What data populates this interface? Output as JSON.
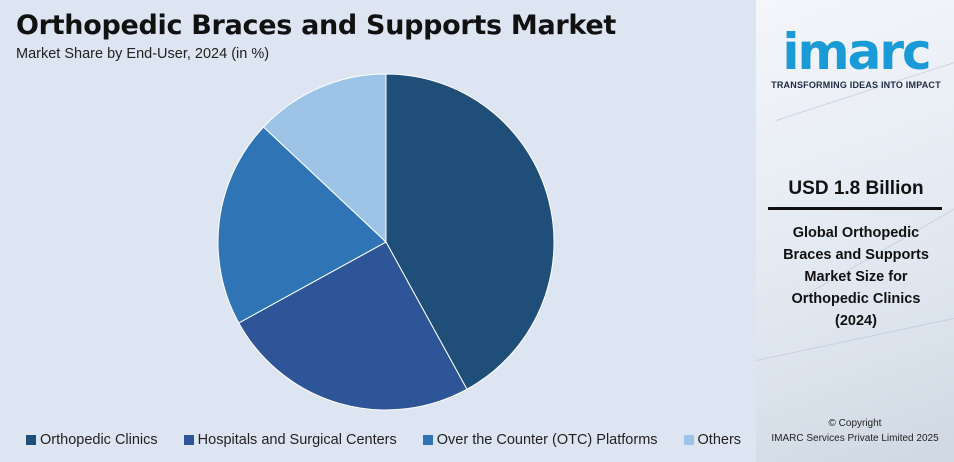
{
  "header": {
    "title": "Orthopedic Braces and Supports Market",
    "subtitle": "Market Share by End-User, 2024 (in %)"
  },
  "chart_data": {
    "type": "pie",
    "title": "Orthopedic Braces and Supports Market",
    "subtitle": "Market Share by End-User, 2024 (in %)",
    "categories": [
      "Orthopedic Clinics",
      "Hospitals and Surgical Centers",
      "Over the Counter (OTC) Platforms",
      "Others"
    ],
    "values": [
      42,
      25,
      20,
      13
    ],
    "colors": [
      "#1f4e79",
      "#2e5597",
      "#2f75b5",
      "#9dc3e6"
    ],
    "legend_position": "bottom"
  },
  "sidebar": {
    "logo_text": "imarc",
    "tagline": "TRANSFORMING IDEAS INTO IMPACT",
    "value": "USD 1.8 Billion",
    "description_lines": [
      "Global Orthopedic",
      "Braces and Supports",
      "Market Size for",
      "Orthopedic Clinics",
      "(2024)"
    ],
    "copyright_line1": "© Copyright",
    "copyright_line2": "IMARC Services Private Limited 2025",
    "brand_color": "#1a9ad6"
  }
}
